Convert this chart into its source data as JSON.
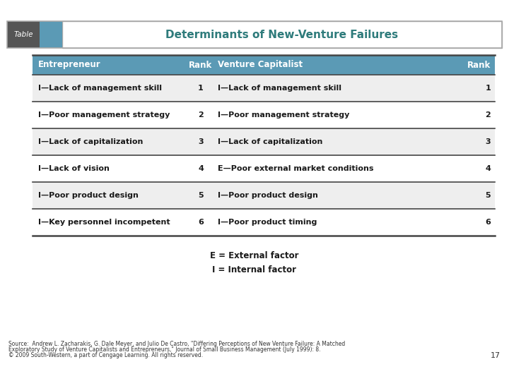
{
  "title": "Determinants of New-Venture Failures",
  "table_label": "Table",
  "header": [
    "Entrepreneur",
    "Rank",
    "Venture Capitalist",
    "Rank"
  ],
  "rows": [
    [
      "I—Lack of management skill",
      "1",
      "I—Lack of management skill",
      "1"
    ],
    [
      "I—Poor management strategy",
      "2",
      "I—Poor management strategy",
      "2"
    ],
    [
      "I—Lack of capitalization",
      "3",
      "I—Lack of capitalization",
      "3"
    ],
    [
      "I—Lack of vision",
      "4",
      "E—Poor external market conditions",
      "4"
    ],
    [
      "I—Poor product design",
      "5",
      "I—Poor product design",
      "5"
    ],
    [
      "I—Key personnel incompetent",
      "6",
      "I—Poor product timing",
      "6"
    ]
  ],
  "legend_lines": [
    "E = External factor",
    "I = Internal factor"
  ],
  "source_line1": "Source:  Andrew L. Zacharakis, G. Dale Meyer, and Julio De Castro, \"Differing Perceptions of New Venture Failure: A Matched",
  "source_line2": "Exploratory Study of Venture Capitalists and Entrepreneurs,\" Journal of Small Business Management (July 1999): 8.",
  "source_line3": "© 2009 South-Western, a part of Cengage Learning. All rights reserved.",
  "page_number": "17",
  "header_bg_color": "#5b9ab5",
  "header_text_color": "#ffffff",
  "title_text_color": "#2e7b7b",
  "table_label_bg": "#555555",
  "table_label_color": "#ffffff",
  "accent_bg_color": "#5b9ab5",
  "row_alt_color": "#eeeeee",
  "row_base_color": "#ffffff",
  "border_color": "#444444",
  "outer_border_color": "#aaaaaa"
}
